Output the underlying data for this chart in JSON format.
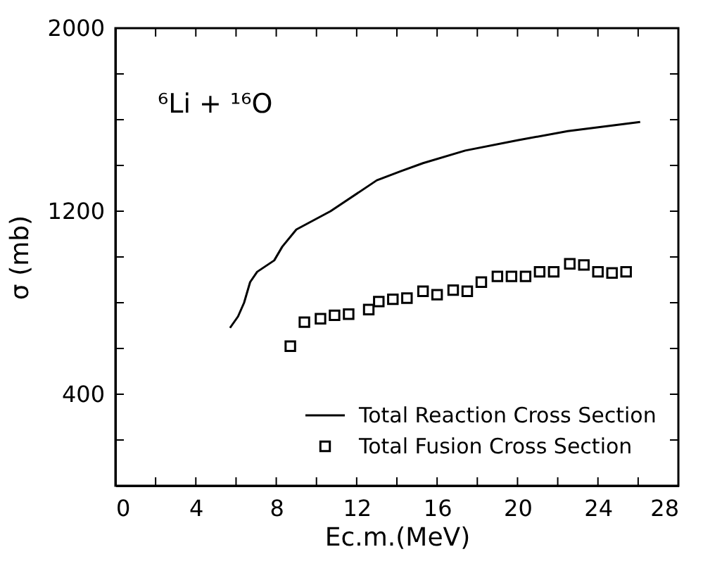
{
  "chart_data": {
    "type": "line",
    "xlabel": "Ec.m.(MeV)",
    "ylabel": "σ (mb)",
    "annotations": [
      "⁶Li + ¹⁶O"
    ],
    "xlim": [
      0,
      28
    ],
    "xticks": [
      0,
      {
        "value": 2,
        "label": null
      },
      4,
      {
        "value": 6,
        "label": null
      },
      8,
      {
        "value": 10,
        "label": null
      },
      12,
      {
        "value": 14,
        "label": null
      },
      16,
      {
        "value": 18,
        "label": null
      },
      20,
      {
        "value": 22,
        "label": null
      },
      24,
      {
        "value": 26,
        "label": null
      },
      28
    ],
    "ylim": [
      0,
      2000
    ],
    "yticks": [
      {
        "value": 0,
        "label": null
      },
      {
        "value": 200,
        "label": null
      },
      400,
      {
        "value": 600,
        "label": null
      },
      {
        "value": 800,
        "label": null
      },
      {
        "value": 1000,
        "label": null
      },
      1200,
      {
        "value": 1400,
        "label": null
      },
      {
        "value": 1600,
        "label": null
      },
      {
        "value": 1800,
        "label": null
      },
      2000
    ],
    "grid": false,
    "legend": "bottom right",
    "series": [
      {
        "name": "Total Reaction Cross Section",
        "marker": "none",
        "line_style": "solid",
        "color": "#000000",
        "x": [
          5.7,
          6.1,
          6.4,
          6.7,
          7.05,
          7.9,
          8.3,
          9.0,
          10.7,
          13.0,
          14.2,
          15.3,
          17.4,
          20.0,
          22.5,
          26.1
        ],
        "values": [
          690,
          740,
          800,
          890,
          935,
          985,
          1045,
          1120,
          1200,
          1335,
          1375,
          1410,
          1465,
          1510,
          1550,
          1590
        ]
      },
      {
        "name": "Total Fusion Cross Section",
        "type": "scatter",
        "marker": "square",
        "color": "#000000",
        "x": [
          8.7,
          9.4,
          10.2,
          10.9,
          11.6,
          12.6,
          13.1,
          13.8,
          14.5,
          15.3,
          16.0,
          16.8,
          17.5,
          18.2,
          19.0,
          19.7,
          20.4,
          21.1,
          21.8,
          22.6,
          23.3,
          24.0,
          24.7,
          25.4
        ],
        "values": [
          610,
          715,
          730,
          745,
          750,
          770,
          805,
          815,
          820,
          850,
          835,
          855,
          850,
          890,
          915,
          915,
          915,
          935,
          935,
          970,
          965,
          935,
          930,
          935
        ]
      }
    ]
  }
}
